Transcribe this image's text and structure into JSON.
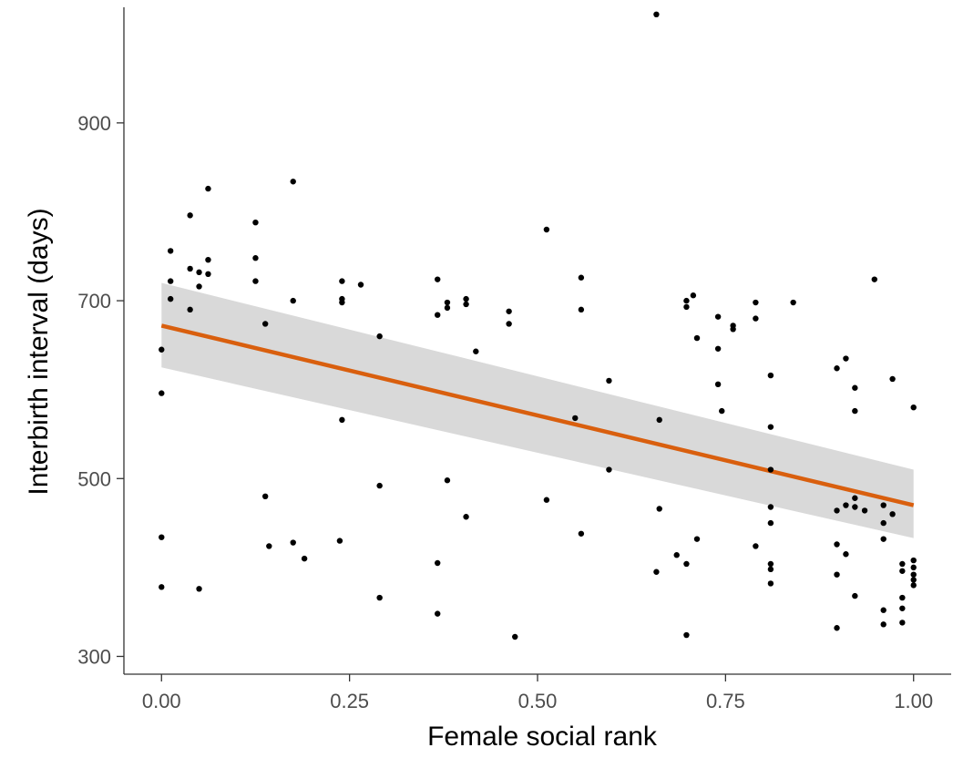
{
  "chart_data": {
    "type": "scatter",
    "title": "",
    "xlabel": "Female social rank",
    "ylabel": "Interbirth interval (days)",
    "xlim": [
      -0.05,
      1.05
    ],
    "ylim": [
      280,
      1030
    ],
    "x_ticks": [
      0.0,
      0.25,
      0.5,
      0.75,
      1.0
    ],
    "x_tick_labels": [
      "0.00",
      "0.25",
      "0.50",
      "0.75",
      "1.00"
    ],
    "y_ticks": [
      300,
      500,
      700,
      900
    ],
    "y_tick_labels": [
      "300",
      "500",
      "700",
      "900"
    ],
    "grid": false,
    "legend": "none",
    "colors": {
      "points": "#000000",
      "fit_line": "#d95f0e",
      "confidence_band": "#d9d9d9",
      "axis": "#333333"
    },
    "regression": {
      "x": [
        0.0,
        1.0
      ],
      "y": [
        672,
        470
      ],
      "ci_lower": [
        625,
        433
      ],
      "ci_upper": [
        720,
        510
      ]
    },
    "points": [
      {
        "x": 0.0,
        "y": 645
      },
      {
        "x": 0.0,
        "y": 596
      },
      {
        "x": 0.0,
        "y": 434
      },
      {
        "x": 0.0,
        "y": 378
      },
      {
        "x": 0.012,
        "y": 722
      },
      {
        "x": 0.012,
        "y": 702
      },
      {
        "x": 0.012,
        "y": 756
      },
      {
        "x": 0.038,
        "y": 796
      },
      {
        "x": 0.038,
        "y": 736
      },
      {
        "x": 0.038,
        "y": 690
      },
      {
        "x": 0.05,
        "y": 732
      },
      {
        "x": 0.05,
        "y": 716
      },
      {
        "x": 0.05,
        "y": 376
      },
      {
        "x": 0.062,
        "y": 826
      },
      {
        "x": 0.062,
        "y": 746
      },
      {
        "x": 0.062,
        "y": 730
      },
      {
        "x": 0.125,
        "y": 788
      },
      {
        "x": 0.125,
        "y": 748
      },
      {
        "x": 0.125,
        "y": 722
      },
      {
        "x": 0.138,
        "y": 674
      },
      {
        "x": 0.138,
        "y": 480
      },
      {
        "x": 0.143,
        "y": 424
      },
      {
        "x": 0.175,
        "y": 834
      },
      {
        "x": 0.175,
        "y": 700
      },
      {
        "x": 0.175,
        "y": 428
      },
      {
        "x": 0.19,
        "y": 410
      },
      {
        "x": 0.24,
        "y": 722
      },
      {
        "x": 0.24,
        "y": 702
      },
      {
        "x": 0.24,
        "y": 698
      },
      {
        "x": 0.24,
        "y": 566
      },
      {
        "x": 0.237,
        "y": 430
      },
      {
        "x": 0.265,
        "y": 718
      },
      {
        "x": 0.29,
        "y": 660
      },
      {
        "x": 0.29,
        "y": 492
      },
      {
        "x": 0.29,
        "y": 366
      },
      {
        "x": 0.367,
        "y": 724
      },
      {
        "x": 0.367,
        "y": 684
      },
      {
        "x": 0.367,
        "y": 405
      },
      {
        "x": 0.367,
        "y": 348
      },
      {
        "x": 0.38,
        "y": 698
      },
      {
        "x": 0.38,
        "y": 692
      },
      {
        "x": 0.38,
        "y": 498
      },
      {
        "x": 0.405,
        "y": 702
      },
      {
        "x": 0.405,
        "y": 696
      },
      {
        "x": 0.405,
        "y": 457
      },
      {
        "x": 0.418,
        "y": 643
      },
      {
        "x": 0.462,
        "y": 688
      },
      {
        "x": 0.462,
        "y": 674
      },
      {
        "x": 0.47,
        "y": 322
      },
      {
        "x": 0.512,
        "y": 780
      },
      {
        "x": 0.512,
        "y": 476
      },
      {
        "x": 0.55,
        "y": 568
      },
      {
        "x": 0.558,
        "y": 726
      },
      {
        "x": 0.558,
        "y": 690
      },
      {
        "x": 0.558,
        "y": 438
      },
      {
        "x": 0.595,
        "y": 610
      },
      {
        "x": 0.595,
        "y": 510
      },
      {
        "x": 0.658,
        "y": 1022
      },
      {
        "x": 0.658,
        "y": 395
      },
      {
        "x": 0.662,
        "y": 566
      },
      {
        "x": 0.662,
        "y": 466
      },
      {
        "x": 0.685,
        "y": 414
      },
      {
        "x": 0.698,
        "y": 700
      },
      {
        "x": 0.698,
        "y": 693
      },
      {
        "x": 0.698,
        "y": 404
      },
      {
        "x": 0.698,
        "y": 324
      },
      {
        "x": 0.707,
        "y": 706
      },
      {
        "x": 0.712,
        "y": 658
      },
      {
        "x": 0.712,
        "y": 432
      },
      {
        "x": 0.74,
        "y": 682
      },
      {
        "x": 0.74,
        "y": 646
      },
      {
        "x": 0.74,
        "y": 606
      },
      {
        "x": 0.745,
        "y": 576
      },
      {
        "x": 0.76,
        "y": 672
      },
      {
        "x": 0.76,
        "y": 668
      },
      {
        "x": 0.79,
        "y": 698
      },
      {
        "x": 0.79,
        "y": 680
      },
      {
        "x": 0.79,
        "y": 424
      },
      {
        "x": 0.81,
        "y": 616
      },
      {
        "x": 0.81,
        "y": 558
      },
      {
        "x": 0.81,
        "y": 510
      },
      {
        "x": 0.81,
        "y": 468
      },
      {
        "x": 0.81,
        "y": 450
      },
      {
        "x": 0.81,
        "y": 404
      },
      {
        "x": 0.81,
        "y": 398
      },
      {
        "x": 0.81,
        "y": 382
      },
      {
        "x": 0.84,
        "y": 698
      },
      {
        "x": 0.898,
        "y": 624
      },
      {
        "x": 0.898,
        "y": 464
      },
      {
        "x": 0.898,
        "y": 426
      },
      {
        "x": 0.898,
        "y": 392
      },
      {
        "x": 0.898,
        "y": 332
      },
      {
        "x": 0.91,
        "y": 635
      },
      {
        "x": 0.91,
        "y": 470
      },
      {
        "x": 0.91,
        "y": 415
      },
      {
        "x": 0.922,
        "y": 602
      },
      {
        "x": 0.922,
        "y": 576
      },
      {
        "x": 0.922,
        "y": 478
      },
      {
        "x": 0.922,
        "y": 468
      },
      {
        "x": 0.922,
        "y": 368
      },
      {
        "x": 0.935,
        "y": 464
      },
      {
        "x": 0.948,
        "y": 724
      },
      {
        "x": 0.96,
        "y": 470
      },
      {
        "x": 0.96,
        "y": 450
      },
      {
        "x": 0.96,
        "y": 432
      },
      {
        "x": 0.96,
        "y": 352
      },
      {
        "x": 0.96,
        "y": 336
      },
      {
        "x": 0.972,
        "y": 612
      },
      {
        "x": 0.972,
        "y": 460
      },
      {
        "x": 0.985,
        "y": 404
      },
      {
        "x": 0.985,
        "y": 396
      },
      {
        "x": 0.985,
        "y": 366
      },
      {
        "x": 0.985,
        "y": 354
      },
      {
        "x": 0.985,
        "y": 338
      },
      {
        "x": 1.0,
        "y": 580
      },
      {
        "x": 1.0,
        "y": 408
      },
      {
        "x": 1.0,
        "y": 400
      },
      {
        "x": 1.0,
        "y": 392
      },
      {
        "x": 1.0,
        "y": 386
      },
      {
        "x": 1.0,
        "y": 380
      }
    ]
  }
}
